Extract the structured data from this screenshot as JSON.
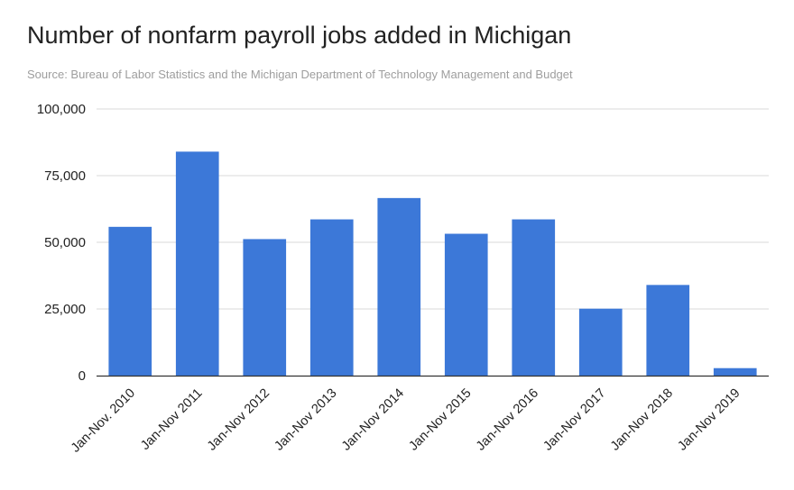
{
  "chart_data": {
    "type": "bar",
    "title": "Number of nonfarm payroll jobs added in Michigan",
    "subtitle": "Source: Bureau of Labor Statistics and the Michigan Department of Technology Management and Budget",
    "xlabel": "",
    "ylabel": "",
    "categories": [
      "Jan-Nov. 2010",
      "Jan-Nov 2011",
      "Jan-Nov 2012",
      "Jan-Nov 2013",
      "Jan-Nov 2014",
      "Jan-Nov 2015",
      "Jan-Nov 2016",
      "Jan-Nov 2017",
      "Jan-Nov 2018",
      "Jan-Nov 2019"
    ],
    "values": [
      55800,
      84000,
      51200,
      58600,
      66600,
      53200,
      58600,
      25100,
      34000,
      2800
    ],
    "ylim": [
      0,
      100000
    ],
    "yticks": [
      0,
      25000,
      50000,
      75000,
      100000
    ],
    "ytick_labels": [
      "0",
      "25,000",
      "50,000",
      "75,000",
      "100,000"
    ],
    "grid": true,
    "legend": "none",
    "bar_color": "#3c78d8",
    "grid_color": "#d9d9d9",
    "axis_color": "#333333"
  }
}
